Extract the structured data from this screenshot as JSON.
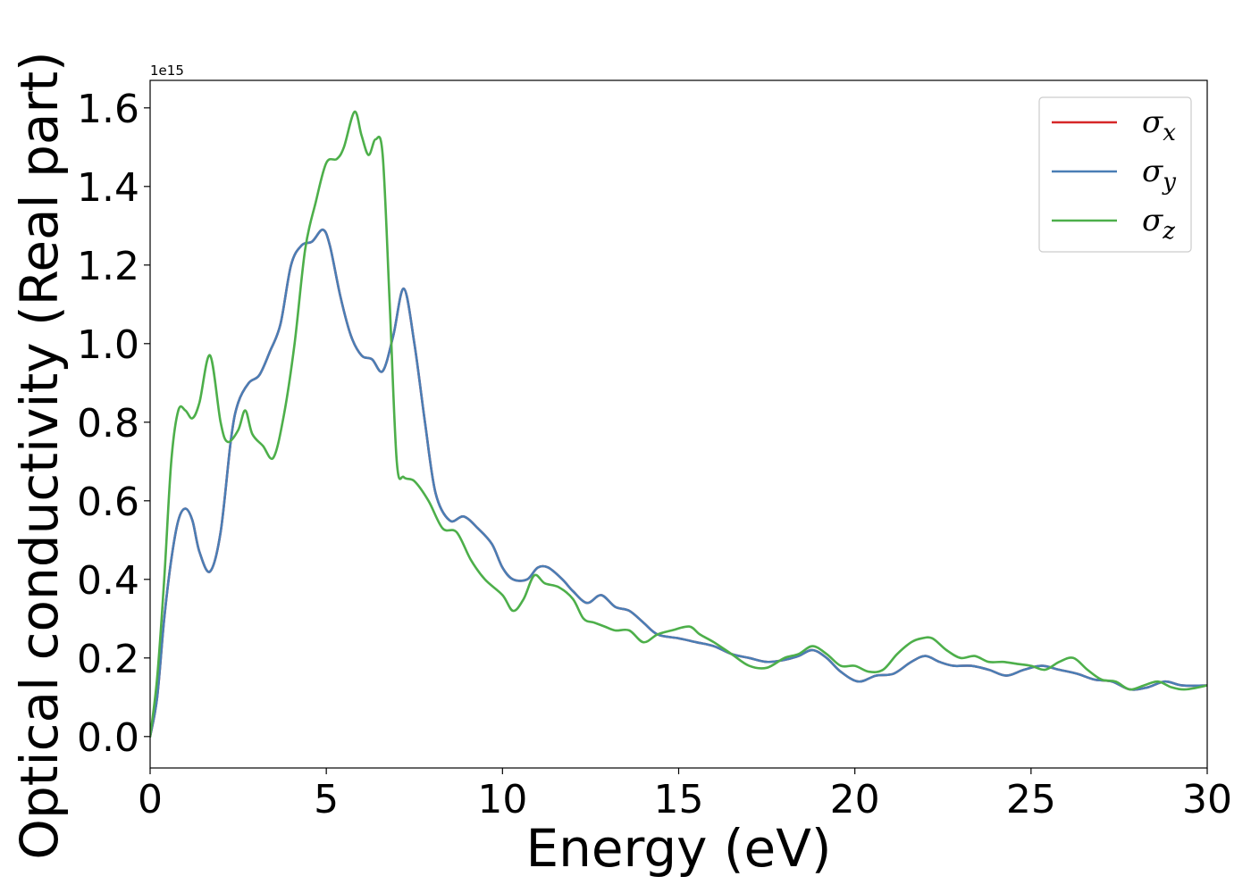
{
  "chart_data": {
    "type": "line",
    "xlabel": "Energy (eV)",
    "ylabel": "Optical conductivity (Real part)",
    "y_offset_label": "1e15",
    "xlim": [
      0,
      30
    ],
    "ylim": [
      -0.08,
      1.67
    ],
    "x_ticks": [
      0,
      5,
      10,
      15,
      20,
      25,
      30
    ],
    "x_tick_labels": [
      "0",
      "5",
      "10",
      "15",
      "20",
      "25",
      "30"
    ],
    "y_ticks": [
      0.0,
      0.2,
      0.4,
      0.6,
      0.8,
      1.0,
      1.2,
      1.4,
      1.6
    ],
    "y_tick_labels": [
      "0.0",
      "0.2",
      "0.4",
      "0.6",
      "0.8",
      "1.0",
      "1.2",
      "1.4",
      "1.6"
    ],
    "grid": false,
    "legend_position": "top-right",
    "series": [
      {
        "name": "σx",
        "legend_base": "σ",
        "legend_sub": "x",
        "color": "#d62728",
        "x": [
          0,
          0.2,
          0.4,
          0.6,
          0.8,
          1.0,
          1.2,
          1.4,
          1.7,
          2.0,
          2.3,
          2.5,
          2.8,
          3.1,
          3.4,
          3.7,
          4.0,
          4.3,
          4.6,
          4.9,
          5.1,
          5.4,
          5.7,
          6.0,
          6.3,
          6.6,
          6.9,
          7.2,
          7.5,
          7.8,
          8.1,
          8.5,
          8.9,
          9.3,
          9.7,
          10.0,
          10.3,
          10.7,
          11.0,
          11.3,
          11.7,
          12.0,
          12.4,
          12.8,
          13.2,
          13.6,
          14.0,
          14.4,
          15.0,
          15.5,
          16.0,
          16.5,
          17.0,
          17.5,
          18.0,
          18.4,
          18.8,
          19.2,
          19.6,
          20.1,
          20.6,
          21.1,
          21.6,
          22.0,
          22.4,
          22.8,
          23.3,
          23.8,
          24.3,
          24.8,
          25.3,
          25.8,
          26.3,
          26.8,
          27.3,
          27.8,
          28.3,
          28.8,
          29.3,
          30.0
        ],
        "values": [
          0,
          0.1,
          0.3,
          0.45,
          0.55,
          0.58,
          0.55,
          0.47,
          0.42,
          0.52,
          0.76,
          0.85,
          0.9,
          0.92,
          0.98,
          1.05,
          1.2,
          1.25,
          1.26,
          1.29,
          1.25,
          1.12,
          1.02,
          0.97,
          0.96,
          0.93,
          1.02,
          1.14,
          1.0,
          0.8,
          0.62,
          0.55,
          0.56,
          0.53,
          0.49,
          0.43,
          0.4,
          0.4,
          0.43,
          0.43,
          0.4,
          0.37,
          0.34,
          0.36,
          0.33,
          0.32,
          0.29,
          0.26,
          0.25,
          0.24,
          0.23,
          0.21,
          0.2,
          0.19,
          0.195,
          0.205,
          0.22,
          0.2,
          0.165,
          0.14,
          0.155,
          0.16,
          0.19,
          0.205,
          0.19,
          0.18,
          0.18,
          0.17,
          0.155,
          0.17,
          0.18,
          0.17,
          0.16,
          0.145,
          0.14,
          0.12,
          0.125,
          0.14,
          0.13,
          0.13
        ]
      },
      {
        "name": "σy",
        "legend_base": "σ",
        "legend_sub": "y",
        "color": "#4a7eb5",
        "x": [
          0,
          0.2,
          0.4,
          0.6,
          0.8,
          1.0,
          1.2,
          1.4,
          1.7,
          2.0,
          2.3,
          2.5,
          2.8,
          3.1,
          3.4,
          3.7,
          4.0,
          4.3,
          4.6,
          4.9,
          5.1,
          5.4,
          5.7,
          6.0,
          6.3,
          6.6,
          6.9,
          7.2,
          7.5,
          7.8,
          8.1,
          8.5,
          8.9,
          9.3,
          9.7,
          10.0,
          10.3,
          10.7,
          11.0,
          11.3,
          11.7,
          12.0,
          12.4,
          12.8,
          13.2,
          13.6,
          14.0,
          14.4,
          15.0,
          15.5,
          16.0,
          16.5,
          17.0,
          17.5,
          18.0,
          18.4,
          18.8,
          19.2,
          19.6,
          20.1,
          20.6,
          21.1,
          21.6,
          22.0,
          22.4,
          22.8,
          23.3,
          23.8,
          24.3,
          24.8,
          25.3,
          25.8,
          26.3,
          26.8,
          27.3,
          27.8,
          28.3,
          28.8,
          29.3,
          30.0
        ],
        "values": [
          0,
          0.1,
          0.3,
          0.45,
          0.55,
          0.58,
          0.55,
          0.47,
          0.42,
          0.52,
          0.76,
          0.85,
          0.9,
          0.92,
          0.98,
          1.05,
          1.2,
          1.25,
          1.26,
          1.29,
          1.25,
          1.12,
          1.02,
          0.97,
          0.96,
          0.93,
          1.02,
          1.14,
          1.0,
          0.8,
          0.62,
          0.55,
          0.56,
          0.53,
          0.49,
          0.43,
          0.4,
          0.4,
          0.43,
          0.43,
          0.4,
          0.37,
          0.34,
          0.36,
          0.33,
          0.32,
          0.29,
          0.26,
          0.25,
          0.24,
          0.23,
          0.21,
          0.2,
          0.19,
          0.195,
          0.205,
          0.22,
          0.2,
          0.165,
          0.14,
          0.155,
          0.16,
          0.19,
          0.205,
          0.19,
          0.18,
          0.18,
          0.17,
          0.155,
          0.17,
          0.18,
          0.17,
          0.16,
          0.145,
          0.14,
          0.12,
          0.125,
          0.14,
          0.13,
          0.13
        ]
      },
      {
        "name": "σz",
        "legend_base": "σ",
        "legend_sub": "z",
        "color": "#4daf4a",
        "x": [
          0,
          0.2,
          0.4,
          0.6,
          0.8,
          1.0,
          1.2,
          1.4,
          1.7,
          2.0,
          2.2,
          2.5,
          2.7,
          2.9,
          3.2,
          3.5,
          3.8,
          4.1,
          4.4,
          4.7,
          5.0,
          5.3,
          5.5,
          5.8,
          6.0,
          6.2,
          6.4,
          6.6,
          6.8,
          7.0,
          7.2,
          7.5,
          7.9,
          8.3,
          8.7,
          9.1,
          9.5,
          10.0,
          10.3,
          10.6,
          10.9,
          11.2,
          11.6,
          12.0,
          12.3,
          12.6,
          12.9,
          13.2,
          13.6,
          14.0,
          14.4,
          14.8,
          15.3,
          15.6,
          16.0,
          16.5,
          17.0,
          17.5,
          18.0,
          18.4,
          18.8,
          19.2,
          19.6,
          20.0,
          20.4,
          20.8,
          21.2,
          21.6,
          21.9,
          22.2,
          22.6,
          23.0,
          23.4,
          23.8,
          24.2,
          24.6,
          25.0,
          25.4,
          25.8,
          26.2,
          26.6,
          27.0,
          27.4,
          27.8,
          28.2,
          28.6,
          29.0,
          29.4,
          30.0
        ],
        "values": [
          0,
          0.15,
          0.4,
          0.7,
          0.83,
          0.83,
          0.81,
          0.85,
          0.97,
          0.8,
          0.75,
          0.78,
          0.83,
          0.77,
          0.74,
          0.71,
          0.82,
          1.0,
          1.24,
          1.36,
          1.46,
          1.47,
          1.5,
          1.59,
          1.53,
          1.48,
          1.52,
          1.48,
          1.1,
          0.7,
          0.66,
          0.65,
          0.6,
          0.53,
          0.52,
          0.45,
          0.4,
          0.36,
          0.32,
          0.35,
          0.41,
          0.39,
          0.38,
          0.35,
          0.3,
          0.29,
          0.28,
          0.27,
          0.27,
          0.24,
          0.26,
          0.27,
          0.28,
          0.26,
          0.24,
          0.21,
          0.18,
          0.175,
          0.2,
          0.21,
          0.23,
          0.21,
          0.18,
          0.18,
          0.165,
          0.17,
          0.21,
          0.24,
          0.25,
          0.25,
          0.22,
          0.2,
          0.205,
          0.19,
          0.19,
          0.185,
          0.18,
          0.17,
          0.19,
          0.2,
          0.17,
          0.145,
          0.14,
          0.12,
          0.13,
          0.14,
          0.125,
          0.12,
          0.13
        ]
      }
    ]
  }
}
